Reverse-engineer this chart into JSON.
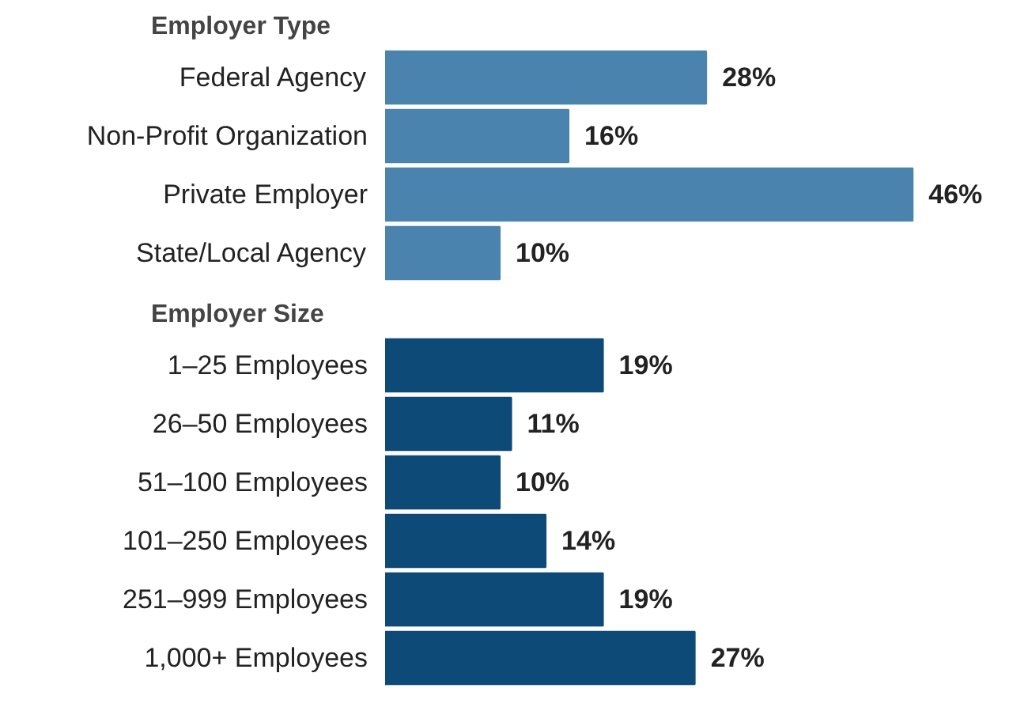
{
  "chart_data": [
    {
      "type": "bar",
      "orientation": "horizontal",
      "title": "Employer Type",
      "categories": [
        "Federal Agency",
        "Non-Profit Organization",
        "Private Employer",
        "State/Local Agency"
      ],
      "values": [
        28,
        16,
        46,
        10
      ],
      "value_labels": [
        "28%",
        "16%",
        "46%",
        "10%"
      ],
      "color": "#4a84ae",
      "grid": false
    },
    {
      "type": "bar",
      "orientation": "horizontal",
      "title": "Employer Size",
      "categories": [
        "1–25 Employees",
        "26–50 Employees",
        "51–100 Employees",
        "101–250 Employees",
        "251–999 Employees",
        "1,000+ Employees"
      ],
      "values": [
        19,
        11,
        10,
        14,
        19,
        27
      ],
      "value_labels": [
        "19%",
        "11%",
        "10%",
        "14%",
        "19%",
        "27%"
      ],
      "color": "#0d4a78",
      "grid": false
    }
  ]
}
